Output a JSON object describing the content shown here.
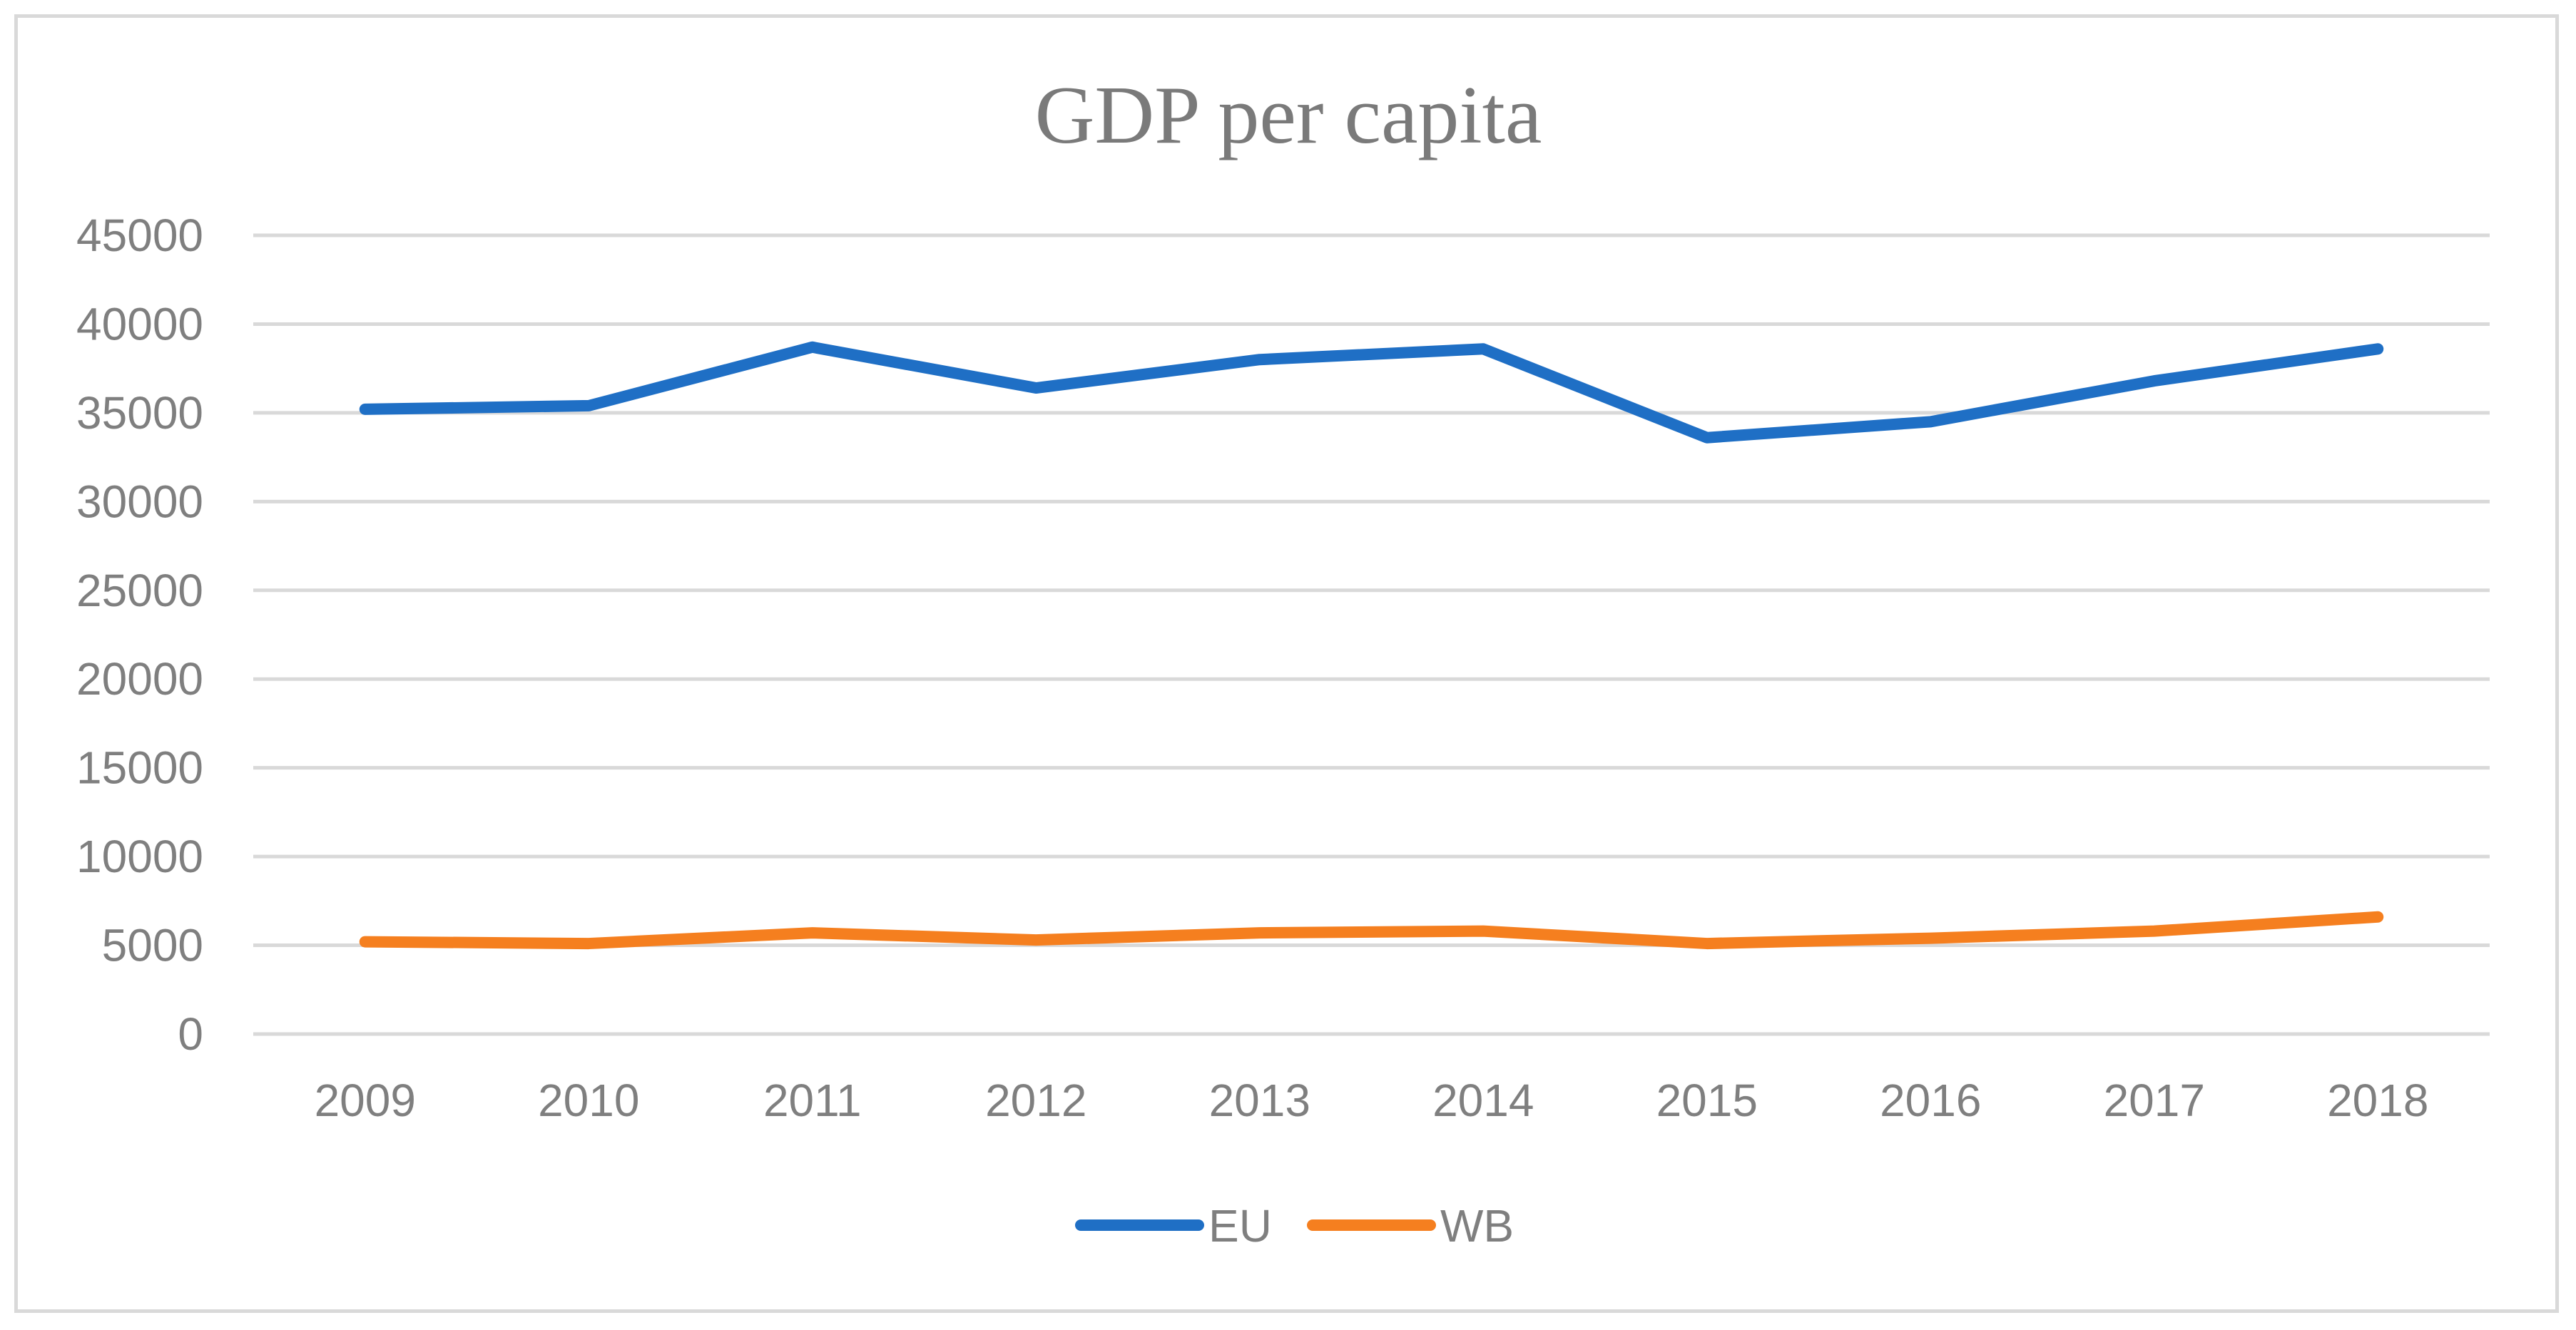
{
  "chart_data": {
    "type": "line",
    "title": "GDP per capita",
    "xlabel": "",
    "ylabel": "",
    "categories": [
      "2009",
      "2010",
      "2011",
      "2012",
      "2013",
      "2014",
      "2015",
      "2016",
      "2017",
      "2018"
    ],
    "series": [
      {
        "name": "EU",
        "color": "#1f6fc5",
        "values": [
          35200,
          35400,
          38700,
          36400,
          38000,
          38600,
          33600,
          34500,
          36800,
          38600
        ]
      },
      {
        "name": "WB",
        "color": "#f57f1f",
        "values": [
          5200,
          5100,
          5700,
          5300,
          5700,
          5800,
          5100,
          5400,
          5800,
          6600
        ]
      }
    ],
    "ylim": [
      0,
      45000
    ],
    "yticks": [
      "0",
      "5000",
      "10000",
      "15000",
      "20000",
      "25000",
      "30000",
      "35000",
      "40000",
      "45000"
    ],
    "grid": true,
    "legend_position": "bottom"
  }
}
